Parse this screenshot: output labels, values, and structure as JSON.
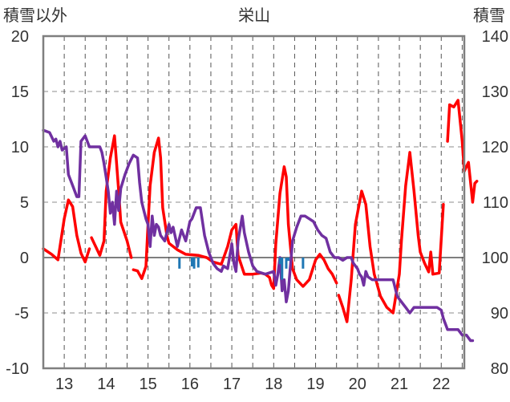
{
  "chart_data": {
    "type": "line",
    "title": "栄山",
    "left_axis_label": "積雪以外",
    "right_axis_label": "積雪",
    "x_ticks": [
      "13",
      "14",
      "15",
      "16",
      "17",
      "18",
      "19",
      "20",
      "21",
      "22"
    ],
    "x_range": [
      12.5,
      22.55
    ],
    "left_ylim": [
      -10,
      20
    ],
    "left_yticks": [
      "20",
      "15",
      "10",
      "5",
      "0",
      "-5",
      "-10"
    ],
    "right_ylim": [
      80,
      140
    ],
    "right_yticks": [
      "140",
      "130",
      "120",
      "110",
      "100",
      "90",
      "80"
    ],
    "grid": {
      "vertical_dashed": true,
      "horizontal_dashed": true
    },
    "colors": {
      "temperature": "#ff0000",
      "snow_depth": "#7030a0",
      "precipitation": "#1f77b4",
      "frame": "#7f7f7f"
    },
    "series": [
      {
        "id": "temperature",
        "axis": "left",
        "color": "#ff0000",
        "segments": [
          [
            [
              12.5,
              0.8
            ],
            [
              12.7,
              0.3
            ],
            [
              12.85,
              -0.2
            ],
            [
              13.0,
              3.5
            ],
            [
              13.1,
              5.2
            ],
            [
              13.2,
              4.6
            ],
            [
              13.3,
              2.0
            ],
            [
              13.4,
              0.4
            ],
            [
              13.5,
              -0.4
            ],
            [
              13.6,
              0.8
            ]
          ],
          [
            [
              13.65,
              1.8
            ],
            [
              13.85,
              0.2
            ],
            [
              13.95,
              1.5
            ],
            [
              14.0,
              6.0
            ],
            [
              14.1,
              9.0
            ],
            [
              14.2,
              11.0
            ],
            [
              14.3,
              6.0
            ],
            [
              14.35,
              3.2
            ],
            [
              14.5,
              1.5
            ],
            [
              14.6,
              0.0
            ]
          ],
          [
            [
              14.65,
              -1.1
            ],
            [
              14.75,
              -1.2
            ],
            [
              14.85,
              -1.9
            ],
            [
              14.95,
              -0.8
            ],
            [
              15.0,
              3.0
            ],
            [
              15.05,
              6.5
            ],
            [
              15.15,
              9.5
            ],
            [
              15.25,
              10.8
            ],
            [
              15.3,
              9.0
            ],
            [
              15.35,
              4.5
            ],
            [
              15.45,
              2.0
            ],
            [
              15.5,
              1.3
            ],
            [
              15.7,
              0.7
            ],
            [
              15.9,
              0.3
            ],
            [
              16.2,
              0.2
            ],
            [
              16.4,
              0.0
            ],
            [
              16.55,
              -0.4
            ],
            [
              16.75,
              -0.6
            ],
            [
              16.9,
              1.0
            ],
            [
              17.0,
              2.5
            ],
            [
              17.1,
              3.0
            ],
            [
              17.15,
              0.2
            ],
            [
              17.3,
              -1.5
            ],
            [
              17.5,
              -1.5
            ],
            [
              17.7,
              -1.4
            ],
            [
              17.8,
              -1.5
            ],
            [
              17.9,
              -1.8
            ],
            [
              17.95,
              -2.5
            ],
            [
              18.0,
              -2.8
            ],
            [
              18.05,
              1.2
            ],
            [
              18.15,
              5.8
            ],
            [
              18.25,
              8.2
            ],
            [
              18.3,
              7.3
            ],
            [
              18.35,
              3.0
            ],
            [
              18.45,
              -1.0
            ],
            [
              18.55,
              -2.0
            ],
            [
              18.7,
              -2.6
            ],
            [
              18.85,
              -2.0
            ],
            [
              19.0,
              -0.2
            ],
            [
              19.1,
              0.3
            ],
            [
              19.2,
              -0.2
            ],
            [
              19.3,
              -1.0
            ],
            [
              19.4,
              -1.5
            ],
            [
              19.5,
              -2.3
            ]
          ],
          [
            [
              19.55,
              -3.4
            ],
            [
              19.65,
              -4.5
            ],
            [
              19.75,
              -5.8
            ],
            [
              19.85,
              -2.0
            ],
            [
              19.95,
              3.0
            ],
            [
              20.1,
              6.0
            ],
            [
              20.2,
              4.8
            ],
            [
              20.3,
              1.0
            ],
            [
              20.4,
              -1.5
            ],
            [
              20.55,
              -3.5
            ],
            [
              20.7,
              -4.5
            ],
            [
              20.85,
              -5.0
            ],
            [
              21.0,
              -1.5
            ],
            [
              21.05,
              1.5
            ],
            [
              21.15,
              6.5
            ],
            [
              21.25,
              9.5
            ],
            [
              21.35,
              6.0
            ],
            [
              21.45,
              2.0
            ],
            [
              21.5,
              0.5
            ],
            [
              21.6,
              -0.5
            ],
            [
              21.7,
              -1.3
            ],
            [
              21.75,
              0.5
            ],
            [
              21.8,
              -1.5
            ],
            [
              21.95,
              -1.4
            ],
            [
              22.05,
              4.8
            ]
          ],
          [
            [
              22.15,
              10.5
            ],
            [
              22.2,
              13.8
            ],
            [
              22.3,
              13.6
            ],
            [
              22.4,
              14.2
            ],
            [
              22.5,
              10.5
            ],
            [
              22.55,
              7.8
            ],
            [
              22.65,
              8.6
            ],
            [
              22.75,
              5.0
            ],
            [
              22.8,
              6.7
            ],
            [
              22.85,
              6.9
            ]
          ]
        ]
      },
      {
        "id": "snow_depth",
        "axis": "right",
        "color": "#7030a0",
        "segments": [
          [
            [
              12.5,
              123.0
            ],
            [
              12.65,
              122.6
            ],
            [
              12.75,
              121.0
            ],
            [
              12.8,
              121.4
            ],
            [
              12.85,
              120.0
            ],
            [
              12.9,
              121.0
            ],
            [
              12.95,
              119.4
            ],
            [
              13.05,
              120.0
            ],
            [
              13.1,
              115.0
            ],
            [
              13.2,
              113.0
            ],
            [
              13.3,
              111.0
            ],
            [
              13.35,
              111.0
            ],
            [
              13.4,
              121.0
            ],
            [
              13.5,
              122.0
            ],
            [
              13.6,
              120.0
            ],
            [
              13.75,
              120.0
            ],
            [
              13.85,
              120.0
            ],
            [
              13.9,
              119.0
            ],
            [
              13.95,
              117.0
            ],
            [
              14.0,
              114.5
            ],
            [
              14.05,
              112.0
            ],
            [
              14.1,
              108.0
            ],
            [
              14.15,
              110.0
            ],
            [
              14.2,
              106.0
            ],
            [
              14.25,
              112.0
            ],
            [
              14.3,
              108.5
            ],
            [
              14.35,
              112.5
            ],
            [
              14.45,
              115.0
            ],
            [
              14.55,
              117.0
            ],
            [
              14.65,
              118.5
            ],
            [
              14.75,
              118.0
            ],
            [
              14.8,
              113.5
            ],
            [
              14.85,
              110.0
            ],
            [
              14.9,
              108.5
            ],
            [
              14.95,
              107.0
            ],
            [
              15.0,
              106.0
            ],
            [
              15.05,
              102.0
            ],
            [
              15.1,
              107.5
            ],
            [
              15.15,
              104.0
            ],
            [
              15.2,
              106.0
            ],
            [
              15.25,
              105.5
            ],
            [
              15.3,
              104.0
            ],
            [
              15.4,
              103.0
            ],
            [
              15.5,
              106.0
            ],
            [
              15.55,
              104.5
            ],
            [
              15.6,
              105.5
            ],
            [
              15.7,
              102.0
            ],
            [
              15.75,
              103.5
            ],
            [
              15.8,
              105.0
            ],
            [
              15.9,
              103.0
            ],
            [
              16.0,
              106.5
            ],
            [
              16.05,
              107.0
            ],
            [
              16.15,
              109.0
            ],
            [
              16.25,
              109.0
            ],
            [
              16.35,
              104.0
            ],
            [
              16.45,
              101.0
            ],
            [
              16.55,
              99.0
            ],
            [
              16.6,
              98.5
            ],
            [
              16.65,
              98.0
            ],
            [
              16.75,
              97.5
            ],
            [
              16.8,
              98.5
            ],
            [
              16.9,
              98.0
            ],
            [
              17.0,
              102.5
            ],
            [
              17.05,
              99.0
            ],
            [
              17.1,
              97.5
            ],
            [
              17.15,
              103.0
            ],
            [
              17.25,
              107.5
            ],
            [
              17.3,
              104.5
            ],
            [
              17.4,
              101.0
            ],
            [
              17.5,
              98.5
            ],
            [
              17.6,
              97.5
            ],
            [
              17.8,
              97.0
            ],
            [
              18.0,
              97.5
            ],
            [
              18.05,
              95.0
            ],
            [
              18.1,
              97.0
            ],
            [
              18.15,
              100.0
            ],
            [
              18.2,
              94.0
            ],
            [
              18.25,
              96.0
            ],
            [
              18.3,
              92.0
            ],
            [
              18.35,
              94.0
            ],
            [
              18.45,
              103.0
            ],
            [
              18.55,
              105.5
            ],
            [
              18.65,
              107.5
            ],
            [
              18.75,
              107.5
            ],
            [
              18.85,
              107.0
            ],
            [
              18.95,
              106.5
            ],
            [
              19.05,
              105.0
            ],
            [
              19.15,
              104.0
            ],
            [
              19.25,
              103.5
            ],
            [
              19.35,
              101.0
            ],
            [
              19.45,
              100.0
            ],
            [
              19.55,
              100.0
            ],
            [
              19.65,
              99.5
            ],
            [
              19.75,
              100.0
            ],
            [
              19.85,
              100.0
            ],
            [
              19.9,
              99.0
            ],
            [
              19.95,
              98.5
            ],
            [
              20.0,
              98.0
            ],
            [
              20.05,
              97.0
            ],
            [
              20.1,
              96.5
            ],
            [
              20.15,
              95.0
            ],
            [
              20.2,
              97.5
            ],
            [
              20.25,
              96.5
            ],
            [
              20.35,
              96.0
            ],
            [
              20.5,
              96.0
            ],
            [
              20.7,
              96.0
            ],
            [
              20.85,
              96.0
            ],
            [
              20.95,
              93.0
            ],
            [
              21.05,
              92.0
            ],
            [
              21.15,
              91.0
            ],
            [
              21.25,
              90.0
            ],
            [
              21.35,
              91.0
            ],
            [
              21.45,
              91.0
            ],
            [
              21.6,
              91.0
            ],
            [
              21.8,
              91.0
            ],
            [
              21.9,
              91.0
            ],
            [
              22.0,
              90.5
            ],
            [
              22.05,
              89.0
            ],
            [
              22.1,
              88.0
            ],
            [
              22.15,
              87.0
            ],
            [
              22.3,
              87.0
            ],
            [
              22.4,
              87.0
            ],
            [
              22.5,
              86.0
            ],
            [
              22.6,
              86.0
            ],
            [
              22.65,
              85.5
            ],
            [
              22.7,
              85.0
            ],
            [
              22.75,
              85.0
            ]
          ]
        ]
      },
      {
        "id": "precipitation",
        "axis": "left",
        "color": "#1f77b4",
        "kind": "bars",
        "points": [
          [
            15.75,
            -1.0
          ],
          [
            16.05,
            -0.8
          ],
          [
            16.1,
            -1.0
          ],
          [
            16.2,
            -0.9
          ],
          [
            18.15,
            -0.6
          ],
          [
            18.2,
            -2.0
          ],
          [
            18.3,
            -1.0
          ],
          [
            18.35,
            -0.3
          ],
          [
            18.7,
            -1.0
          ]
        ]
      }
    ]
  }
}
